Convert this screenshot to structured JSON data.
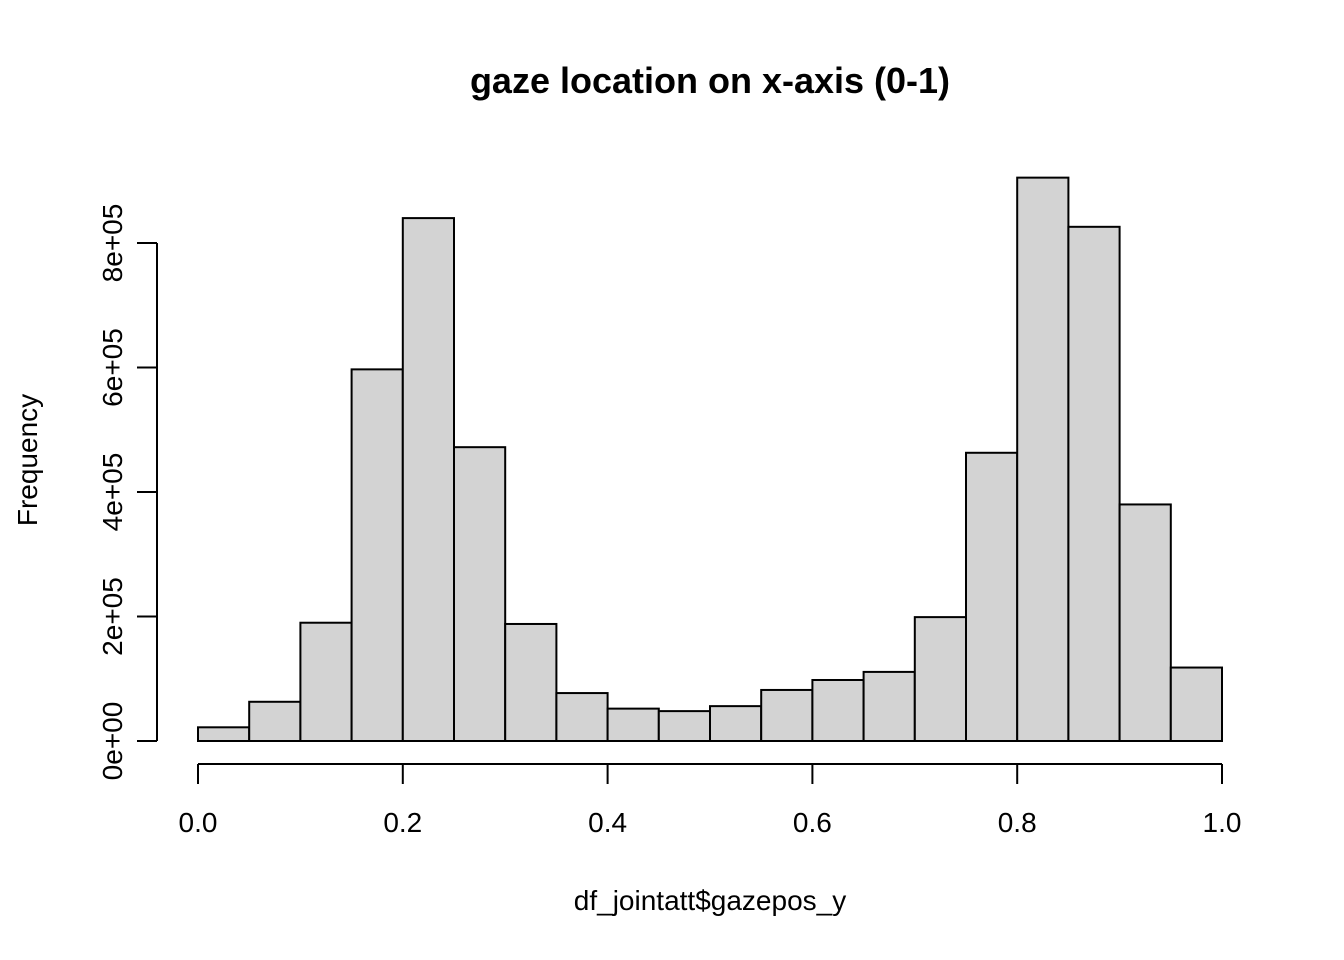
{
  "chart_data": {
    "type": "bar",
    "title": "gaze location on x-axis (0-1)",
    "xlabel": "df_jointatt$gazepos_y",
    "ylabel": "Frequency",
    "xlim": [
      0,
      1
    ],
    "ylim": [
      0,
      800000
    ],
    "bin_width": 0.05,
    "bin_starts": [
      0.0,
      0.05,
      0.1,
      0.15,
      0.2,
      0.25,
      0.3,
      0.35,
      0.4,
      0.45,
      0.5,
      0.55,
      0.6,
      0.65,
      0.7,
      0.75,
      0.8,
      0.85,
      0.9,
      0.95
    ],
    "values": [
      22000,
      63000,
      190000,
      597000,
      840000,
      472000,
      188000,
      77000,
      52000,
      48000,
      56000,
      82000,
      98000,
      111000,
      199000,
      463000,
      905000,
      826000,
      380000,
      118000
    ],
    "x_ticks": [
      0.0,
      0.2,
      0.4,
      0.6,
      0.8,
      1.0
    ],
    "x_tick_labels": [
      "0.0",
      "0.2",
      "0.4",
      "0.6",
      "0.8",
      "1.0"
    ],
    "y_ticks": [
      0,
      200000,
      400000,
      600000,
      800000
    ],
    "y_tick_labels": [
      "0e+00",
      "2e+05",
      "4e+05",
      "6e+05",
      "8e+05"
    ],
    "bar_fill": "#d3d3d3",
    "bar_edge": "#000000",
    "grid": false,
    "legend": "none"
  }
}
